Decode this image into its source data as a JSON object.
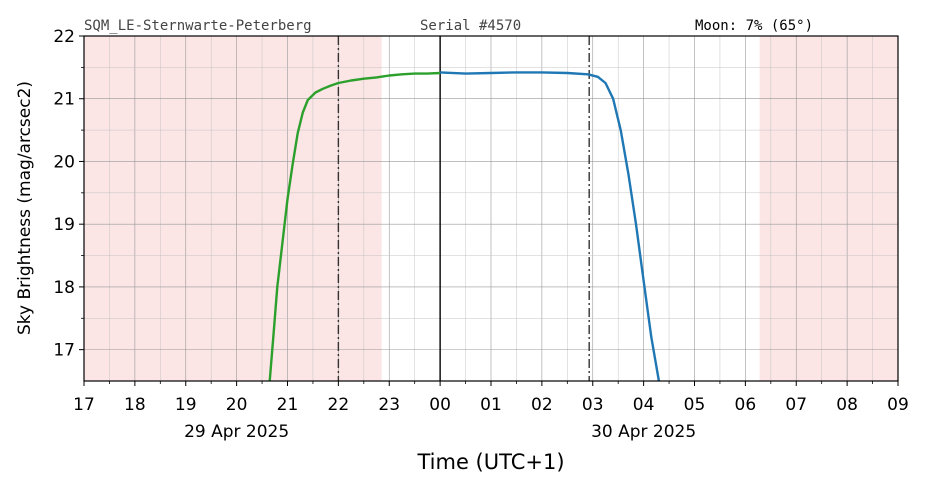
{
  "header": {
    "station": "SQM_LE-Sternwarte-Peterberg",
    "serial": "Serial #4570",
    "moon": "Moon: 7% (65°)"
  },
  "chart_data": {
    "type": "line",
    "xlabel": "Time (UTC+1)",
    "ylabel": "Sky Brightness (mag/arcsec2)",
    "xlim": [
      17,
      33
    ],
    "ylim": [
      16.5,
      22
    ],
    "x_unit": "hour of day (values above 24 belong to 30 Apr 2025)",
    "x_ticks": [
      "17",
      "18",
      "19",
      "20",
      "21",
      "22",
      "23",
      "00",
      "01",
      "02",
      "03",
      "04",
      "05",
      "06",
      "07",
      "08",
      "09"
    ],
    "y_ticks": [
      "17",
      "18",
      "19",
      "20",
      "21",
      "22"
    ],
    "date_labels": [
      {
        "x": 20,
        "label": "29 Apr 2025"
      },
      {
        "x": 28,
        "label": "30 Apr 2025"
      }
    ],
    "grid": true,
    "minor_grid_step_hours": 0.5,
    "shaded_regions": [
      {
        "from": 17,
        "to": 22.85,
        "color": "#fbe5e5"
      },
      {
        "from": 30.28,
        "to": 33,
        "color": "#fbe5e5"
      }
    ],
    "vlines": [
      {
        "x": 22.0,
        "style": "dashdot"
      },
      {
        "x": 24.0,
        "style": "solid"
      },
      {
        "x": 26.93,
        "style": "dashdot"
      }
    ],
    "series": [
      {
        "color": "#2ca02c",
        "points": [
          [
            20.65,
            16.5
          ],
          [
            20.72,
            17.2
          ],
          [
            20.8,
            18.0
          ],
          [
            20.9,
            18.7
          ],
          [
            21.0,
            19.4
          ],
          [
            21.1,
            19.95
          ],
          [
            21.2,
            20.45
          ],
          [
            21.3,
            20.78
          ],
          [
            21.4,
            20.98
          ],
          [
            21.55,
            21.1
          ],
          [
            21.7,
            21.16
          ],
          [
            21.85,
            21.21
          ],
          [
            22.0,
            21.25
          ],
          [
            22.25,
            21.29
          ],
          [
            22.5,
            21.32
          ],
          [
            22.75,
            21.34
          ],
          [
            23.0,
            21.37
          ],
          [
            23.25,
            21.39
          ],
          [
            23.5,
            21.4
          ],
          [
            23.75,
            21.4
          ],
          [
            24.0,
            21.41
          ]
        ]
      },
      {
        "color": "#1f77b4",
        "points": [
          [
            24.0,
            21.42
          ],
          [
            24.5,
            21.4
          ],
          [
            25.0,
            21.41
          ],
          [
            25.5,
            21.42
          ],
          [
            26.0,
            21.42
          ],
          [
            26.5,
            21.41
          ],
          [
            26.9,
            21.39
          ],
          [
            27.1,
            21.35
          ],
          [
            27.25,
            21.25
          ],
          [
            27.4,
            21.0
          ],
          [
            27.55,
            20.5
          ],
          [
            27.7,
            19.8
          ],
          [
            27.85,
            19.0
          ],
          [
            28.0,
            18.1
          ],
          [
            28.15,
            17.2
          ],
          [
            28.3,
            16.5
          ]
        ]
      }
    ]
  }
}
